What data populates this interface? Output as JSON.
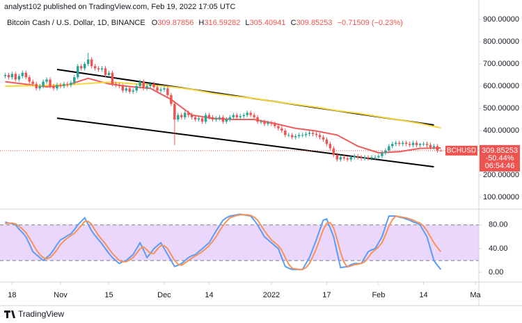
{
  "header": {
    "byline": "analyst102 published on TradingView.com, Feb 19, 2022 17:05 UTC",
    "symbol": "Bitcoin Cash / U.S. Dollar, 1D, BINANCE",
    "ohlc": [
      {
        "k": "O",
        "v": "309.87856"
      },
      {
        "k": "H",
        "v": "316.59282"
      },
      {
        "k": "L",
        "v": "305.40941"
      },
      {
        "k": "C",
        "v": "309.85253"
      }
    ],
    "change": "−0.71509 (−0.23%)"
  },
  "footer": {
    "logo": "TradingView"
  },
  "chart_data": [
    {
      "type": "candlestick",
      "xlim": [
        -1.5,
        137
      ],
      "ylim": [
        50,
        987.5
      ],
      "yticks": [
        {
          "value": 900,
          "label": "900.00000"
        },
        {
          "value": 800,
          "label": "800.00000"
        },
        {
          "value": 700,
          "label": "700.00000"
        },
        {
          "value": 600,
          "label": "600.00000"
        },
        {
          "value": 500,
          "label": "500.00000"
        },
        {
          "value": 400,
          "label": "400.00000"
        },
        {
          "value": 200,
          "label": "200.00000"
        },
        {
          "value": 100,
          "label": "100.00000"
        }
      ],
      "up_color": "#26a69a",
      "down_color": "#ef5350",
      "open": [
        645,
        650,
        640,
        655,
        630,
        645,
        660,
        640,
        620,
        610,
        590,
        600,
        620,
        630,
        600,
        590,
        605,
        600,
        610,
        605,
        615,
        640,
        690,
        680,
        700,
        720,
        690,
        680,
        675,
        680,
        650,
        660,
        610,
        605,
        600,
        580,
        590,
        575,
        580,
        600,
        620,
        590,
        600,
        610,
        595,
        580,
        585,
        590,
        560,
        520,
        450,
        470,
        460,
        480,
        470,
        460,
        450,
        455,
        440,
        470,
        460,
        450,
        455,
        460,
        440,
        450,
        460,
        470,
        460,
        465,
        470,
        480,
        470,
        460,
        440,
        440,
        430,
        435,
        430,
        420,
        410,
        400,
        380,
        380,
        370,
        375,
        380,
        380,
        385,
        390,
        385,
        380,
        370,
        360,
        340,
        320,
        290,
        270,
        280,
        275,
        270,
        280,
        285,
        280,
        275,
        280,
        275,
        280,
        280,
        285,
        300,
        310,
        330,
        340,
        345,
        340,
        345,
        340,
        335,
        345,
        335,
        340,
        340,
        335,
        325,
        330,
        309.87856
      ],
      "high": [
        660,
        660,
        665,
        665,
        655,
        670,
        670,
        650,
        630,
        620,
        610,
        630,
        640,
        640,
        610,
        615,
        615,
        620,
        620,
        625,
        650,
        700,
        700,
        710,
        750,
        730,
        700,
        690,
        690,
        690,
        670,
        670,
        620,
        615,
        610,
        600,
        600,
        590,
        610,
        630,
        630,
        610,
        620,
        620,
        605,
        595,
        600,
        600,
        570,
        530,
        480,
        480,
        490,
        490,
        480,
        470,
        465,
        465,
        480,
        480,
        470,
        465,
        470,
        470,
        460,
        470,
        480,
        480,
        475,
        480,
        490,
        490,
        480,
        470,
        450,
        450,
        445,
        445,
        440,
        430,
        420,
        410,
        390,
        390,
        385,
        390,
        390,
        395,
        400,
        400,
        395,
        390,
        380,
        370,
        350,
        330,
        300,
        290,
        290,
        285,
        290,
        295,
        295,
        290,
        290,
        290,
        290,
        290,
        295,
        310,
        320,
        340,
        350,
        355,
        355,
        355,
        355,
        350,
        355,
        355,
        345,
        350,
        350,
        345,
        340,
        340,
        316.59282
      ],
      "low": [
        635,
        630,
        630,
        620,
        620,
        635,
        630,
        610,
        600,
        580,
        580,
        590,
        610,
        590,
        580,
        580,
        590,
        590,
        595,
        595,
        605,
        630,
        670,
        670,
        690,
        680,
        670,
        665,
        665,
        640,
        640,
        600,
        595,
        590,
        570,
        570,
        565,
        565,
        570,
        590,
        580,
        580,
        590,
        585,
        570,
        570,
        575,
        550,
        510,
        335,
        440,
        450,
        450,
        460,
        450,
        440,
        440,
        430,
        430,
        450,
        440,
        440,
        445,
        430,
        430,
        440,
        450,
        450,
        450,
        455,
        460,
        460,
        450,
        430,
        430,
        420,
        420,
        420,
        410,
        400,
        390,
        370,
        370,
        360,
        360,
        365,
        370,
        370,
        375,
        375,
        370,
        360,
        350,
        330,
        310,
        280,
        260,
        260,
        265,
        260,
        260,
        270,
        270,
        265,
        265,
        265,
        265,
        270,
        270,
        275,
        290,
        300,
        320,
        330,
        330,
        330,
        330,
        325,
        325,
        325,
        325,
        330,
        325,
        315,
        315,
        300,
        305.40941
      ],
      "close": [
        650,
        640,
        655,
        630,
        645,
        660,
        640,
        620,
        610,
        590,
        600,
        620,
        630,
        600,
        590,
        605,
        600,
        610,
        605,
        615,
        640,
        690,
        680,
        700,
        720,
        690,
        680,
        675,
        680,
        650,
        660,
        610,
        605,
        600,
        580,
        590,
        575,
        580,
        600,
        620,
        590,
        600,
        610,
        595,
        580,
        585,
        590,
        560,
        520,
        450,
        470,
        460,
        480,
        470,
        460,
        450,
        455,
        440,
        470,
        460,
        450,
        455,
        460,
        440,
        450,
        460,
        470,
        460,
        465,
        470,
        480,
        470,
        460,
        440,
        440,
        430,
        435,
        430,
        420,
        410,
        400,
        380,
        380,
        370,
        375,
        380,
        380,
        385,
        390,
        385,
        380,
        370,
        360,
        340,
        320,
        290,
        270,
        280,
        275,
        270,
        280,
        285,
        280,
        275,
        280,
        275,
        280,
        280,
        285,
        300,
        310,
        330,
        340,
        345,
        340,
        345,
        340,
        335,
        345,
        335,
        340,
        340,
        335,
        325,
        330,
        310.56762,
        309.85253
      ],
      "series": [
        {
          "color": "#f05a5a",
          "x": [
            0,
            12,
            18,
            24,
            30,
            36,
            42,
            48,
            54,
            60,
            66,
            72,
            78,
            84,
            90,
            96,
            102,
            108,
            114,
            120,
            126
          ],
          "values": [
            620,
            597,
            605,
            635,
            610,
            598,
            590,
            540,
            470,
            455,
            450,
            450,
            432,
            410,
            398,
            380,
            330,
            300,
            305,
            320,
            322
          ]
        },
        {
          "color": "#f5d63c",
          "x": [
            0,
            12,
            18,
            24,
            30,
            36,
            42,
            48,
            54,
            60,
            66,
            72,
            78,
            84,
            90,
            96,
            102,
            108,
            114,
            120,
            126
          ],
          "values": [
            600,
            603,
            606,
            612,
            618,
            612,
            606,
            597,
            585,
            568,
            555,
            545,
            530,
            518,
            505,
            490,
            478,
            463,
            448,
            432,
            412
          ]
        }
      ],
      "trendlines": [
        {
          "color": "#000000",
          "x": [
            15,
            124
          ],
          "values": [
            675,
            425
          ]
        },
        {
          "color": "#000000",
          "x": [
            15,
            124
          ],
          "values": [
            456,
            237
          ]
        }
      ],
      "price_label": {
        "symbol": "BCHUSD",
        "price": "309.85253",
        "change": "-50.44%",
        "countdown": "06:54:46",
        "color": "#ef5350"
      }
    },
    {
      "type": "line",
      "xlim": [
        -1.5,
        137
      ],
      "ylim": [
        -15,
        102
      ],
      "yticks": [
        {
          "value": 80,
          "label": "80.00"
        },
        {
          "value": 40,
          "label": "40.00"
        },
        {
          "value": 0,
          "label": "0.00"
        }
      ],
      "band": [
        20,
        80
      ],
      "band_color": "#ead7fb",
      "xticks": [
        {
          "value": 2,
          "label": "18"
        },
        {
          "value": 16,
          "label": "Nov"
        },
        {
          "value": 30,
          "label": "15"
        },
        {
          "value": 46,
          "label": "Dec"
        },
        {
          "value": 59,
          "label": "14"
        },
        {
          "value": 77,
          "label": "2022"
        },
        {
          "value": 93,
          "label": "17"
        },
        {
          "value": 108,
          "label": "Feb"
        },
        {
          "value": 121,
          "label": "14"
        },
        {
          "value": 136,
          "label": "Ma"
        }
      ],
      "series": [
        {
          "color": "#5b9cf6",
          "values": [
            85,
            83,
            82,
            80,
            73,
            67,
            60,
            48,
            35,
            30,
            25,
            20,
            25,
            30,
            38,
            47,
            55,
            58,
            62,
            65,
            72,
            80,
            86,
            92,
            81,
            70,
            62,
            55,
            48,
            40,
            32,
            25,
            20,
            15,
            18,
            20,
            25,
            30,
            40,
            50,
            38,
            25,
            32,
            40,
            45,
            50,
            40,
            30,
            20,
            10,
            12,
            15,
            20,
            25,
            28,
            30,
            35,
            40,
            45,
            50,
            60,
            70,
            79,
            88,
            92,
            95,
            96,
            97,
            98,
            97,
            96,
            95,
            88,
            80,
            70,
            60,
            55,
            50,
            45,
            40,
            25,
            10,
            7,
            5,
            5,
            5,
            5,
            15,
            25,
            40,
            55,
            72,
            88,
            90,
            75,
            60,
            34,
            8,
            9,
            10,
            13,
            15,
            15,
            15,
            25,
            35,
            38,
            40,
            50,
            60,
            78,
            95,
            95,
            95,
            93,
            92,
            90,
            88,
            85,
            83,
            80,
            70,
            60,
            40,
            20,
            12,
            5
          ]
        },
        {
          "color": "#f7925a",
          "values": [
            82,
            83,
            83,
            82,
            78,
            73,
            67,
            58,
            48,
            38,
            30,
            25,
            23,
            25,
            31,
            38,
            47,
            53,
            58,
            62,
            66,
            72,
            79,
            86,
            86,
            81,
            71,
            62,
            55,
            48,
            40,
            32,
            26,
            20,
            18,
            18,
            21,
            25,
            32,
            40,
            43,
            38,
            32,
            32,
            39,
            45,
            45,
            40,
            30,
            20,
            14,
            12,
            16,
            20,
            24,
            28,
            31,
            35,
            40,
            45,
            52,
            60,
            70,
            79,
            86,
            92,
            94,
            96,
            97,
            97,
            97,
            96,
            93,
            88,
            79,
            70,
            62,
            55,
            50,
            45,
            37,
            25,
            14,
            7,
            6,
            5,
            5,
            8,
            15,
            27,
            40,
            56,
            72,
            83,
            84,
            75,
            56,
            34,
            17,
            9,
            11,
            13,
            14,
            15,
            18,
            25,
            33,
            38,
            43,
            50,
            63,
            78,
            89,
            95,
            94,
            93,
            92,
            90,
            88,
            85,
            83,
            78,
            70,
            60,
            50,
            42,
            35
          ]
        }
      ]
    }
  ]
}
